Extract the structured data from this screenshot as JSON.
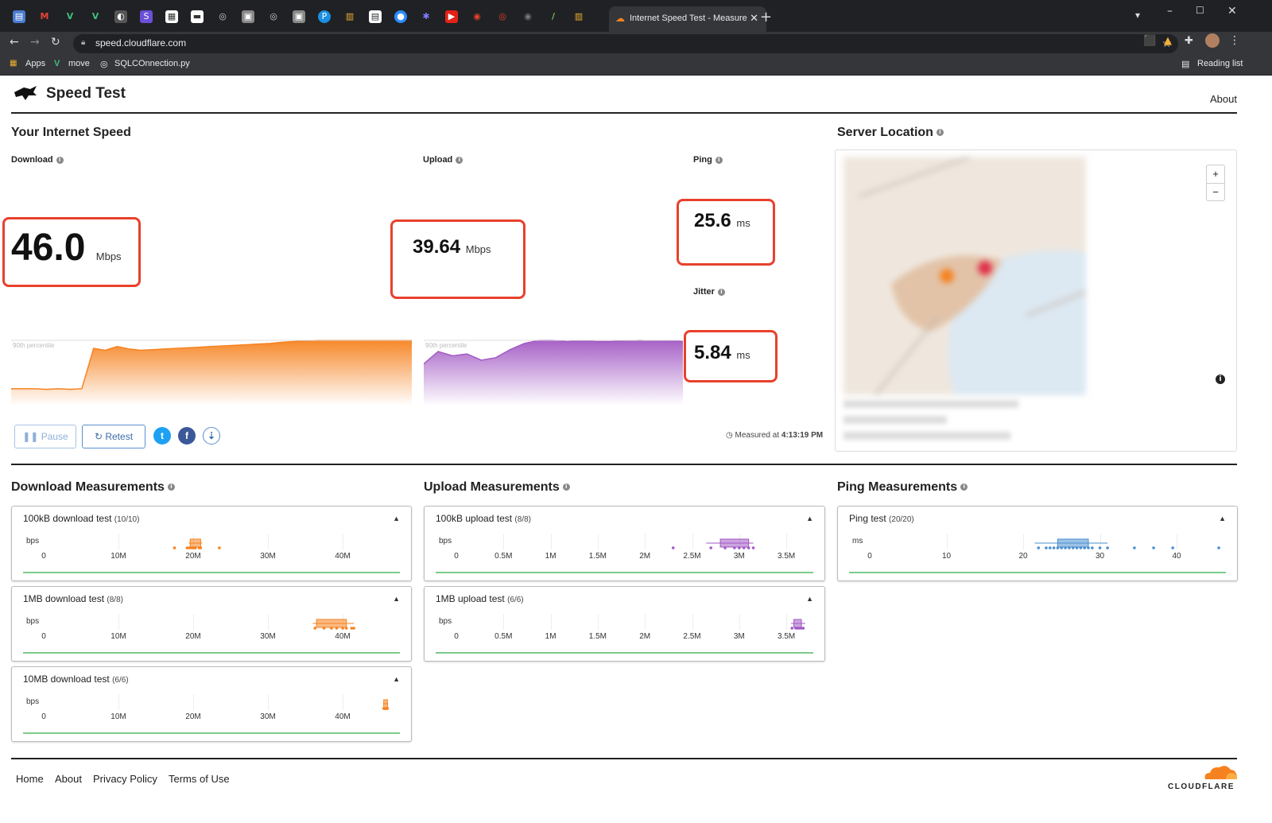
{
  "browser": {
    "active_tab_title": "Internet Speed Test - Measure N",
    "url": "speed.cloudflare.com",
    "bookmarks": [
      "Apps",
      "move",
      "SQLCOnnection.py"
    ],
    "reading_list": "Reading list"
  },
  "header": {
    "title": "Speed Test",
    "about": "About"
  },
  "speed": {
    "title": "Your Internet Speed",
    "download": {
      "label": "Download",
      "value": "46.0",
      "unit": "Mbps"
    },
    "upload": {
      "label": "Upload",
      "value": "39.64",
      "unit": "Mbps"
    },
    "ping": {
      "label": "Ping",
      "value": "25.6",
      "unit": "ms"
    },
    "jitter": {
      "label": "Jitter",
      "value": "5.84",
      "unit": "ms"
    },
    "percentile": "90th percentile",
    "pause": "Pause",
    "retest": "Retest",
    "measured_prefix": "Measured at",
    "measured_time": "4:13:19 PM",
    "download_series": [
      0.22,
      0.22,
      0.22,
      0.21,
      0.22,
      0.21,
      0.22,
      0.87,
      0.84,
      0.9,
      0.86,
      0.84,
      0.85,
      0.86,
      0.87,
      0.88,
      0.89,
      0.9,
      0.91,
      0.92,
      0.93,
      0.94,
      0.95,
      0.97,
      0.98,
      0.99,
      1.0,
      1.0,
      1.0,
      1.0,
      1.0,
      1.0,
      1.0,
      1.0,
      1.0
    ],
    "upload_series": [
      0.62,
      0.82,
      0.75,
      0.78,
      0.68,
      0.72,
      0.85,
      0.95,
      1.0,
      1.0,
      0.98,
      0.99,
      0.98,
      0.98,
      0.99,
      1.0,
      0.99,
      0.99,
      0.98
    ],
    "colors": {
      "download": "#f6821f",
      "upload": "#a259c4",
      "ping": "#4a8fd0"
    }
  },
  "server": {
    "title": "Server Location",
    "zoom_in": "+",
    "zoom_out": "−"
  },
  "measurements": {
    "download": {
      "title": "Download Measurements",
      "tests": [
        {
          "name": "100kB download test",
          "count": "(10/10)",
          "unit": "bps",
          "ticks": [
            "0",
            "10M",
            "20M",
            "30M",
            "40M"
          ],
          "max": 50,
          "q1": 19.6,
          "q3": 21.0,
          "min": 19.4,
          "maxw": 21.2,
          "points": [
            17.5,
            19.2,
            19.5,
            20.0,
            20.3,
            20.8,
            21.0,
            23.5,
            20.2,
            19.8
          ]
        },
        {
          "name": "1MB download test",
          "count": "(8/8)",
          "unit": "bps",
          "ticks": [
            "0",
            "10M",
            "20M",
            "30M",
            "40M"
          ],
          "max": 50,
          "q1": 36.5,
          "q3": 40.5,
          "min": 36.0,
          "maxw": 41.5,
          "points": [
            36.3,
            37.5,
            38.5,
            39.2,
            40.0,
            40.5,
            41.2,
            41.5
          ]
        },
        {
          "name": "10MB download test",
          "count": "(6/6)",
          "unit": "bps",
          "ticks": [
            "0",
            "10M",
            "20M",
            "30M",
            "40M"
          ],
          "max": 50,
          "q1": 45.5,
          "q3": 46.0,
          "min": 45.4,
          "maxw": 46.1,
          "points": [
            45.5,
            45.6,
            45.7,
            45.8,
            45.9,
            46.0
          ]
        }
      ]
    },
    "upload": {
      "title": "Upload Measurements",
      "tests": [
        {
          "name": "100kB upload test",
          "count": "(8/8)",
          "unit": "bps",
          "ticks": [
            "0",
            "0.5M",
            "1M",
            "1.5M",
            "2M",
            "2.5M",
            "3M",
            "3.5M"
          ],
          "max": 4,
          "q1": 2.8,
          "q3": 3.1,
          "min": 2.65,
          "maxw": 3.15,
          "points": [
            2.3,
            2.7,
            2.85,
            2.95,
            3.0,
            3.05,
            3.1,
            3.15
          ]
        },
        {
          "name": "1MB upload test",
          "count": "(6/6)",
          "unit": "bps",
          "ticks": [
            "0",
            "0.5M",
            "1M",
            "1.5M",
            "2M",
            "2.5M",
            "3M",
            "3.5M"
          ],
          "max": 4,
          "q1": 3.58,
          "q3": 3.66,
          "min": 3.55,
          "maxw": 3.7,
          "points": [
            3.56,
            3.6,
            3.62,
            3.64,
            3.66,
            3.68
          ]
        }
      ]
    },
    "ping": {
      "title": "Ping Measurements",
      "tests": [
        {
          "name": "Ping test",
          "count": "(20/20)",
          "unit": "ms",
          "ticks": [
            "0",
            "10",
            "20",
            "30",
            "40"
          ],
          "max": 47,
          "q1": 24.5,
          "q3": 28.5,
          "min": 21.5,
          "maxw": 31.0,
          "points": [
            22.0,
            23.0,
            23.5,
            24.0,
            24.5,
            25.0,
            25.5,
            26.0,
            26.5,
            27.0,
            27.5,
            28.0,
            28.5,
            29.0,
            30.0,
            31.0,
            34.5,
            37.0,
            39.5,
            45.5
          ]
        }
      ]
    }
  },
  "footer": {
    "links": [
      "Home",
      "About",
      "Privacy Policy",
      "Terms of Use"
    ],
    "brand": "CLOUDFLARE"
  }
}
